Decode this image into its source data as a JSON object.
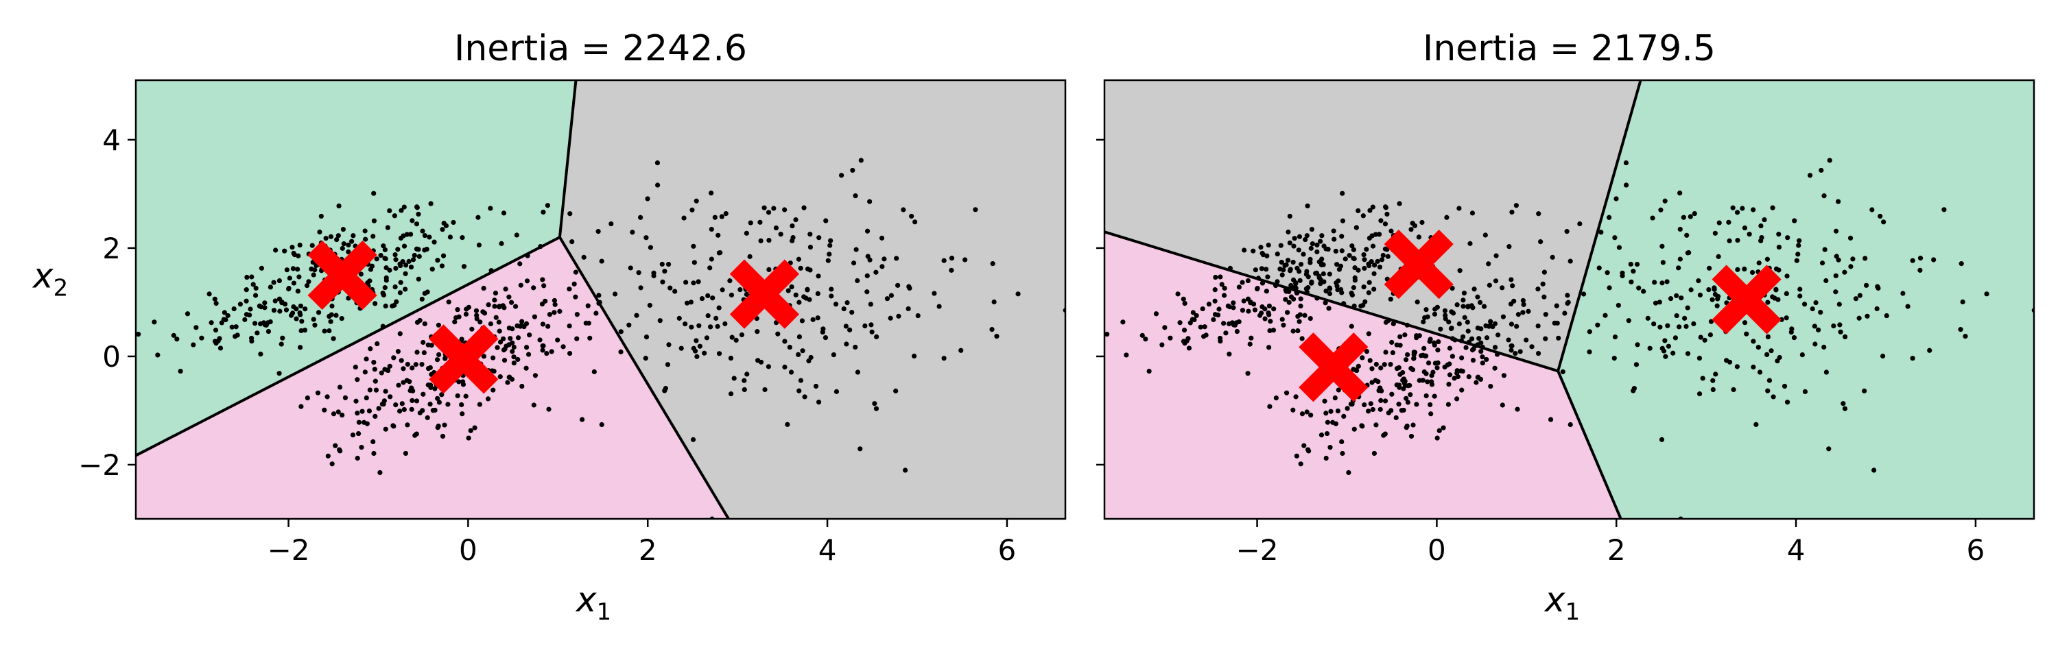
{
  "chart_data": [
    {
      "type": "scatter",
      "title": "Inertia = 2242.6",
      "xlabel": "x",
      "xlabel_sub": "1",
      "ylabel": "x",
      "ylabel_sub": "2",
      "xlim": [
        -3.7,
        6.65
      ],
      "ylim": [
        -3.0,
        5.1
      ],
      "xticks": [
        -2,
        0,
        2,
        4,
        6
      ],
      "yticks": [
        -2,
        0,
        2,
        4
      ],
      "xtick_labels": [
        "−2",
        "0",
        "2",
        "4",
        "6"
      ],
      "ytick_labels": [
        "−2",
        "0",
        "2",
        "4"
      ],
      "show_yticklabels": true,
      "grid": false,
      "regions": [
        {
          "color": "#b3e2cd",
          "polygon": [
            [
              -3.7,
              -1.83
            ],
            [
              1.02,
              2.2
            ],
            [
              1.2,
              5.1
            ],
            [
              -3.7,
              5.1
            ]
          ]
        },
        {
          "color": "#f4cae4",
          "polygon": [
            [
              -3.7,
              -1.83
            ],
            [
              1.02,
              2.2
            ],
            [
              2.9,
              -3.0
            ],
            [
              -3.7,
              -3.0
            ]
          ]
        },
        {
          "color": "#cccccc",
          "polygon": [
            [
              1.02,
              2.2
            ],
            [
              1.2,
              5.1
            ],
            [
              6.65,
              5.1
            ],
            [
              6.65,
              -3.0
            ],
            [
              2.9,
              -3.0
            ]
          ]
        }
      ],
      "boundaries": [
        [
          [
            -3.7,
            -1.83
          ],
          [
            1.02,
            2.2
          ]
        ],
        [
          [
            1.02,
            2.2
          ],
          [
            1.2,
            5.1
          ]
        ],
        [
          [
            1.02,
            2.2
          ],
          [
            2.9,
            -3.0
          ]
        ]
      ],
      "centroids": [
        [
          -1.4,
          1.5
        ],
        [
          -0.05,
          -0.05
        ],
        [
          3.3,
          1.15
        ]
      ],
      "clusters": [
        {
          "center": [
            -1.5,
            1.4
          ],
          "sx": 0.95,
          "sy": 0.45,
          "rot": 0.62,
          "n": 300
        },
        {
          "center": [
            -0.1,
            -0.1
          ],
          "sx": 1.0,
          "sy": 0.42,
          "rot": 0.8,
          "n": 300
        },
        {
          "center": [
            3.3,
            1.05
          ],
          "sx": 1.15,
          "sy": 1.05,
          "rot": 0.0,
          "n": 270
        }
      ]
    },
    {
      "type": "scatter",
      "title": "Inertia = 2179.5",
      "xlabel": "x",
      "xlabel_sub": "1",
      "ylabel": "",
      "ylabel_sub": "",
      "xlim": [
        -3.7,
        6.65
      ],
      "ylim": [
        -3.0,
        5.1
      ],
      "xticks": [
        -2,
        0,
        2,
        4,
        6
      ],
      "yticks": [
        -2,
        0,
        2,
        4
      ],
      "xtick_labels": [
        "−2",
        "0",
        "2",
        "4",
        "6"
      ],
      "ytick_labels": [
        "−2",
        "0",
        "2",
        "4"
      ],
      "show_yticklabels": false,
      "grid": false,
      "regions": [
        {
          "color": "#cccccc",
          "polygon": [
            [
              -3.7,
              2.3
            ],
            [
              1.35,
              -0.27
            ],
            [
              2.27,
              5.1
            ],
            [
              -3.7,
              5.1
            ]
          ]
        },
        {
          "color": "#f4cae4",
          "polygon": [
            [
              -3.7,
              2.3
            ],
            [
              1.35,
              -0.27
            ],
            [
              2.05,
              -3.0
            ],
            [
              -3.7,
              -3.0
            ]
          ]
        },
        {
          "color": "#b3e2cd",
          "polygon": [
            [
              1.35,
              -0.27
            ],
            [
              2.27,
              5.1
            ],
            [
              6.65,
              5.1
            ],
            [
              6.65,
              -3.0
            ],
            [
              2.05,
              -3.0
            ]
          ]
        }
      ],
      "boundaries": [
        [
          [
            -3.7,
            2.3
          ],
          [
            1.35,
            -0.27
          ]
        ],
        [
          [
            1.35,
            -0.27
          ],
          [
            2.27,
            5.1
          ]
        ],
        [
          [
            1.35,
            -0.27
          ],
          [
            2.05,
            -3.0
          ]
        ]
      ],
      "centroids": [
        [
          -0.2,
          1.7
        ],
        [
          -1.15,
          -0.2
        ],
        [
          3.45,
          1.05
        ]
      ],
      "clusters": [
        {
          "center": [
            -1.5,
            1.4
          ],
          "sx": 0.95,
          "sy": 0.45,
          "rot": 0.62,
          "n": 300
        },
        {
          "center": [
            -0.1,
            -0.1
          ],
          "sx": 1.0,
          "sy": 0.42,
          "rot": 0.8,
          "n": 300
        },
        {
          "center": [
            3.3,
            1.05
          ],
          "sx": 1.15,
          "sy": 1.05,
          "rot": 0.0,
          "n": 270
        }
      ]
    }
  ],
  "colors": {
    "point": "#000000",
    "centroid": "#ff0000",
    "boundary": "#000000",
    "axis": "#000000"
  }
}
